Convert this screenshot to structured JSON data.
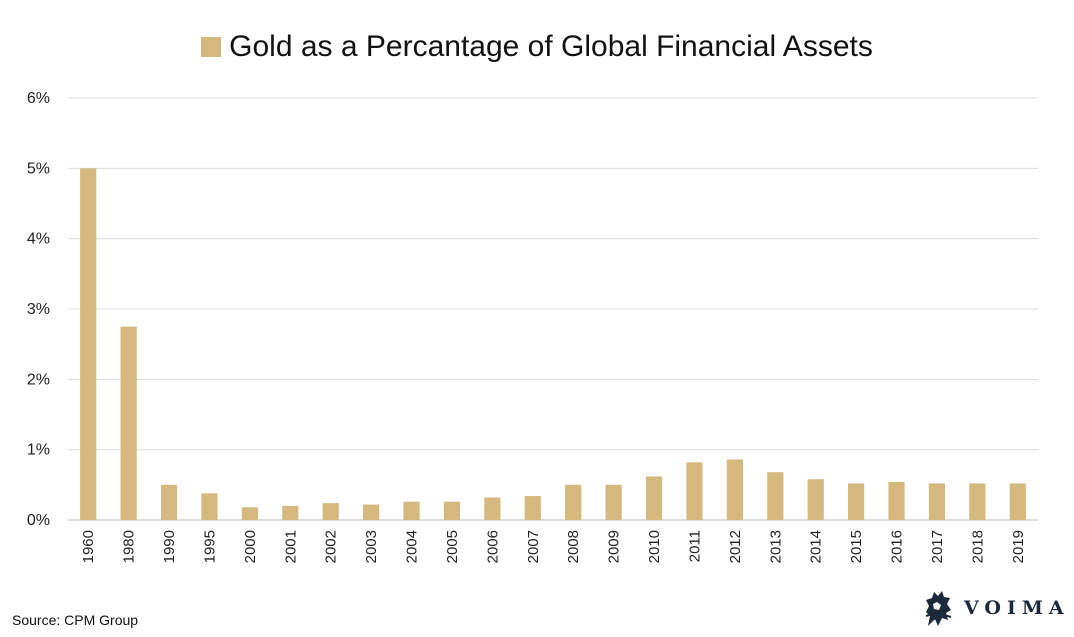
{
  "legend": {
    "label": "Gold as a Percantage of Global Financial Assets",
    "color": "#d4b87d"
  },
  "source": "Source: CPM Group",
  "brand": {
    "name": "VOIMA",
    "logo_icon": "lion-crest-icon"
  },
  "chart_data": {
    "type": "bar",
    "title": "",
    "xlabel": "",
    "ylabel": "",
    "ylim": [
      0,
      6
    ],
    "y_unit": "%",
    "yticks": [
      "0%",
      "1%",
      "2%",
      "3%",
      "4%",
      "5%",
      "6%"
    ],
    "grid": true,
    "legend_position": "top",
    "categories": [
      "1960",
      "1980",
      "1990",
      "1995",
      "2000",
      "2001",
      "2002",
      "2003",
      "2004",
      "2005",
      "2006",
      "2007",
      "2008",
      "2009",
      "2010",
      "2011",
      "2012",
      "2013",
      "2014",
      "2015",
      "2016",
      "2017",
      "2018",
      "2019"
    ],
    "series": [
      {
        "name": "Gold as a Percantage of Global Financial Assets",
        "color": "#d4b87d",
        "values": [
          5.0,
          2.75,
          0.5,
          0.38,
          0.18,
          0.2,
          0.24,
          0.22,
          0.26,
          0.26,
          0.32,
          0.34,
          0.5,
          0.5,
          0.62,
          0.82,
          0.86,
          0.68,
          0.58,
          0.52,
          0.54,
          0.52,
          0.52,
          0.52
        ]
      }
    ]
  }
}
